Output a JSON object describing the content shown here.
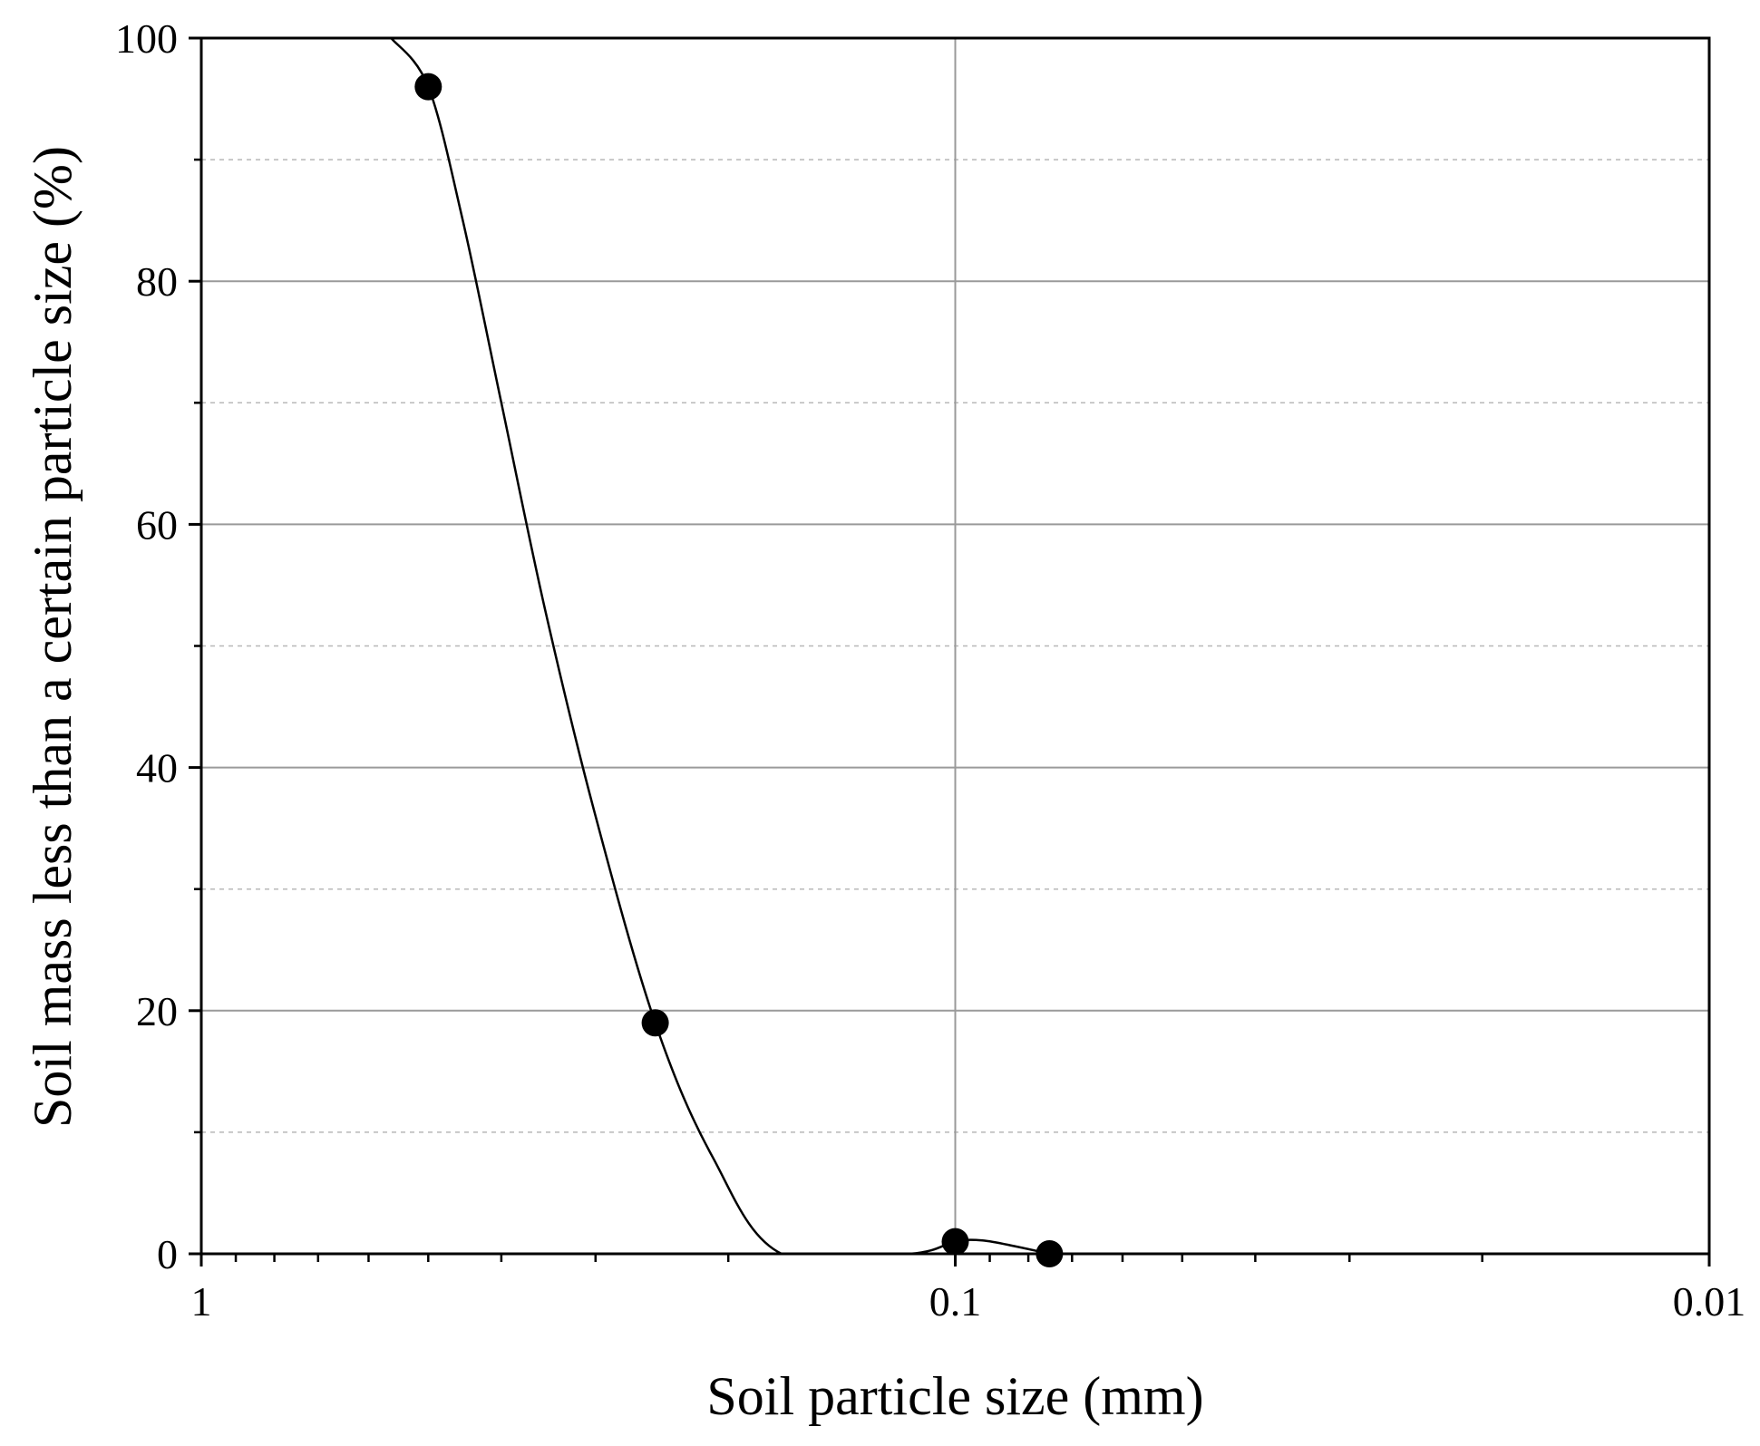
{
  "chart_data": {
    "type": "scatter",
    "title": "",
    "xlabel": "Soil particle size (mm)",
    "ylabel": "Soil mass less than a certain particle size (%)",
    "x_scale": "log",
    "x_reversed": true,
    "xlim": [
      1,
      0.01
    ],
    "ylim": [
      0,
      100
    ],
    "x_tick_values": [
      1,
      0.1,
      0.01
    ],
    "x_tick_labels": [
      "1",
      "0.1",
      "0.01"
    ],
    "y_tick_values": [
      0,
      20,
      40,
      60,
      80,
      100
    ],
    "y_tick_labels": [
      "0",
      "20",
      "40",
      "60",
      "80",
      "100"
    ],
    "grid": true,
    "legend": "none",
    "series": [
      {
        "marker": "filled-circle",
        "color": "#000000",
        "points": [
          {
            "x": 0.5,
            "y": 96
          },
          {
            "x": 0.25,
            "y": 19
          },
          {
            "x": 0.1,
            "y": 1
          },
          {
            "x": 0.075,
            "y": 0
          }
        ]
      }
    ],
    "fit_curve": {
      "color": "#000000",
      "points": [
        {
          "x": 0.56,
          "y": 100
        },
        {
          "x": 0.5,
          "y": 96
        },
        {
          "x": 0.45,
          "y": 85
        },
        {
          "x": 0.4,
          "y": 70
        },
        {
          "x": 0.35,
          "y": 53
        },
        {
          "x": 0.3,
          "y": 36
        },
        {
          "x": 0.25,
          "y": 19
        },
        {
          "x": 0.21,
          "y": 8
        },
        {
          "x": 0.17,
          "y": 0
        },
        {
          "x": 0.115,
          "y": 0
        },
        {
          "x": 0.1,
          "y": 1
        },
        {
          "x": 0.092,
          "y": 1.1
        },
        {
          "x": 0.083,
          "y": 0.6
        },
        {
          "x": 0.075,
          "y": 0
        }
      ]
    }
  }
}
